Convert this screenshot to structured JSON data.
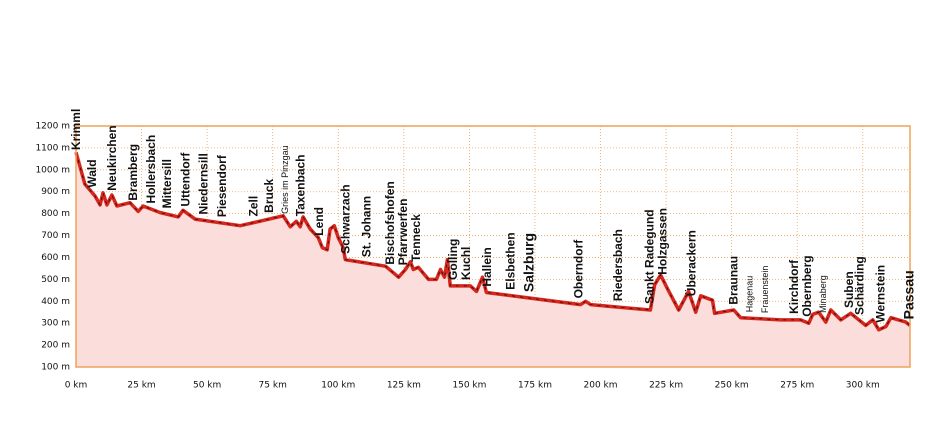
{
  "chart_data": {
    "type": "line",
    "x": [
      0,
      3.4,
      7.3,
      9.2,
      10.3,
      11.8,
      13.7,
      15.6,
      20.6,
      23.7,
      25.6,
      32,
      39,
      40.8,
      45.4,
      62.6,
      79,
      81.7,
      84,
      85.5,
      86.6,
      89.3,
      92.4,
      93.9,
      95.8,
      96.9,
      98.5,
      100,
      101.9,
      102.7,
      118,
      123,
      125.6,
      127.5,
      128.6,
      130.5,
      134.4,
      137.4,
      139,
      140.5,
      141.6,
      142.7,
      150.4,
      152.7,
      155,
      156.5,
      169.5,
      192.4,
      194.3,
      196.2,
      219,
      220.6,
      222.9,
      225.6,
      229.8,
      233.6,
      236.3,
      238.2,
      242.7,
      243.5,
      250.8,
      253.4,
      268.7,
      276.3,
      279.4,
      280.9,
      283.2,
      285.9,
      287.8,
      291.6,
      295.4,
      301.1,
      303.8,
      306.1,
      308.8,
      310.7,
      316.4,
      318
    ],
    "series": [
      {
        "color": "#d9261c",
        "values": [
          1080,
          935,
          880,
          840,
          895,
          840,
          885,
          835,
          850,
          810,
          835,
          805,
          785,
          815,
          775,
          745,
          790,
          740,
          765,
          740,
          785,
          730,
          690,
          645,
          635,
          730,
          745,
          690,
          645,
          590,
          560,
          510,
          545,
          580,
          545,
          555,
          500,
          500,
          545,
          510,
          590,
          470,
          470,
          445,
          510,
          440,
          420,
          385,
          400,
          385,
          360,
          475,
          520,
          455,
          360,
          445,
          350,
          425,
          405,
          345,
          360,
          325,
          315,
          315,
          300,
          340,
          350,
          305,
          360,
          315,
          345,
          290,
          315,
          270,
          285,
          325,
          305,
          290
        ]
      }
    ],
    "xlim": [
      0,
      318
    ],
    "ylim": [
      100,
      1200
    ],
    "xticks": [
      {
        "value": 0,
        "label": "0 km"
      },
      {
        "value": 25,
        "label": "25 km"
      },
      {
        "value": 50,
        "label": "50 km"
      },
      {
        "value": 75,
        "label": "75 km"
      },
      {
        "value": 100,
        "label": "100 km"
      },
      {
        "value": 125,
        "label": "125 km"
      },
      {
        "value": 150,
        "label": "150 km"
      },
      {
        "value": 175,
        "label": "175 km"
      },
      {
        "value": 200,
        "label": "200 km"
      },
      {
        "value": 225,
        "label": "225 km"
      },
      {
        "value": 250,
        "label": "250 km"
      },
      {
        "value": 275,
        "label": "275 km"
      },
      {
        "value": 300,
        "label": "300 km"
      }
    ],
    "yticks": [
      {
        "value": 100,
        "label": "100 m"
      },
      {
        "value": 200,
        "label": "200 m"
      },
      {
        "value": 300,
        "label": "300 m"
      },
      {
        "value": 400,
        "label": "400 m"
      },
      {
        "value": 500,
        "label": "500 m"
      },
      {
        "value": 600,
        "label": "600 m"
      },
      {
        "value": 700,
        "label": "700 m"
      },
      {
        "value": 800,
        "label": "800 m"
      },
      {
        "value": 900,
        "label": "900 m"
      },
      {
        "value": 1000,
        "label": "1000 m"
      },
      {
        "value": 1100,
        "label": "1100 m"
      },
      {
        "value": 1200,
        "label": "1200 m"
      }
    ],
    "grid": true,
    "fill_color": "#fbdddb",
    "frame_color": "#f0a25a",
    "towns": [
      {
        "name": "Krimml",
        "km": 0.4
      },
      {
        "name": "Wald",
        "km": 6.5
      },
      {
        "name": "Neukirchen",
        "km": 14
      },
      {
        "name": "Bramberg",
        "km": 22
      },
      {
        "name": "Hollersbach",
        "km": 29
      },
      {
        "name": "Mittersill",
        "km": 35
      },
      {
        "name": "Uttendorf",
        "km": 42
      },
      {
        "name": "Niedernsill",
        "km": 49
      },
      {
        "name": "Piesendorf",
        "km": 56
      },
      {
        "name": "Zell",
        "km": 68
      },
      {
        "name": "Bruck",
        "km": 74
      },
      {
        "name": "Gries im Pinzgau",
        "km": 80,
        "style": "small"
      },
      {
        "name": "Taxenbach",
        "km": 86
      },
      {
        "name": "Lend",
        "km": 93
      },
      {
        "name": "Schwarzach",
        "km": 103
      },
      {
        "name": "St. Johann",
        "km": 111
      },
      {
        "name": "Bischofshofen",
        "km": 120
      },
      {
        "name": "Pfarrwerfen",
        "km": 125
      },
      {
        "name": "Tenneck",
        "km": 130
      },
      {
        "name": "Golling",
        "km": 144
      },
      {
        "name": "Kuchl",
        "km": 149
      },
      {
        "name": "Hallein",
        "km": 157
      },
      {
        "name": "Elsbethen",
        "km": 166
      },
      {
        "name": "Salzburg",
        "km": 173,
        "style": "large"
      },
      {
        "name": "Oberndorf",
        "km": 192
      },
      {
        "name": "Riedersbach",
        "km": 207
      },
      {
        "name": "Sankt Radegund",
        "km": 219
      },
      {
        "name": "Holzgassen",
        "km": 224
      },
      {
        "name": "Überackern",
        "km": 235
      },
      {
        "name": "Braunau",
        "km": 251
      },
      {
        "name": "Hagenau",
        "km": 257,
        "style": "small"
      },
      {
        "name": "Frauenstein",
        "km": 263,
        "style": "small"
      },
      {
        "name": "Kirchdorf",
        "km": 274
      },
      {
        "name": "Obernberg",
        "km": 279
      },
      {
        "name": "Minaberg",
        "km": 285,
        "style": "small"
      },
      {
        "name": "Suben",
        "km": 295
      },
      {
        "name": "Schärding",
        "km": 299
      },
      {
        "name": "Wernstein",
        "km": 307
      },
      {
        "name": "Passau",
        "km": 318,
        "style": "large"
      }
    ]
  }
}
